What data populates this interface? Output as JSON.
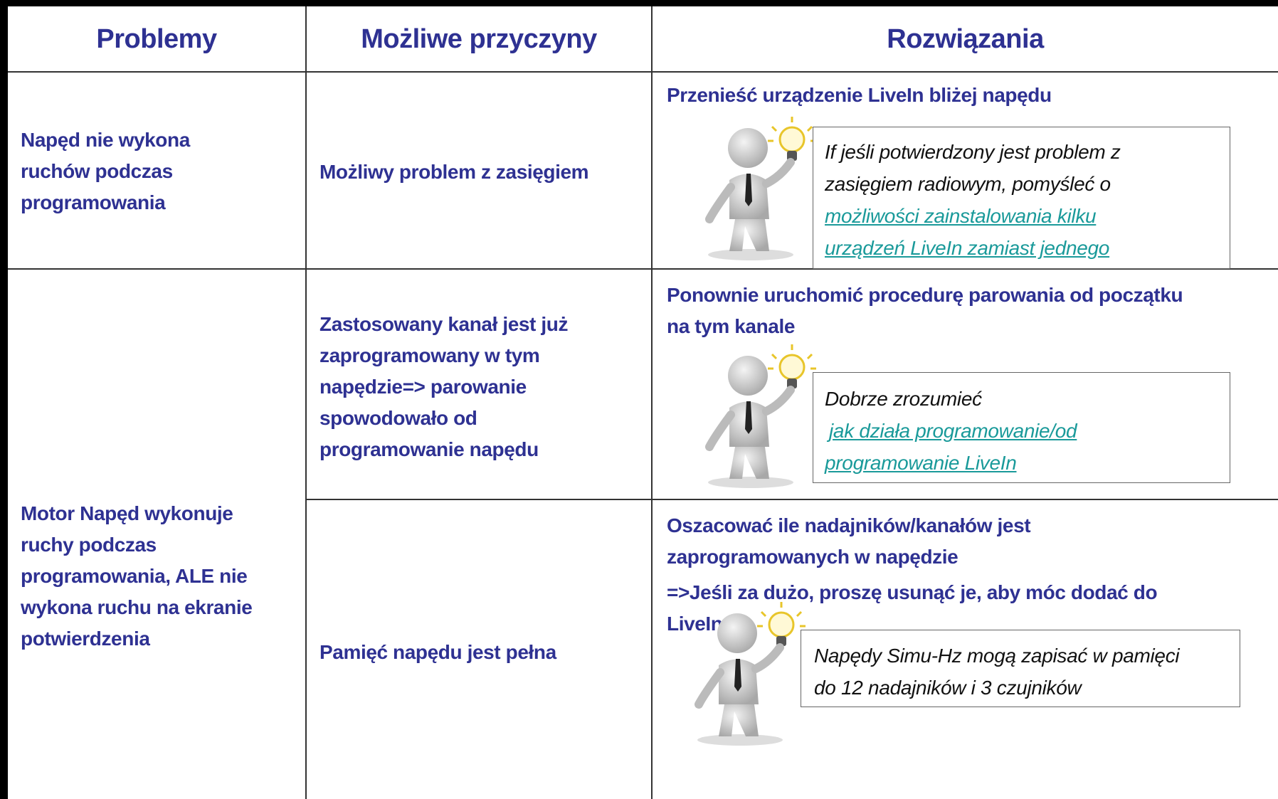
{
  "header": {
    "columns": [
      "Problemy",
      "Możliwe przyczyny",
      "Rozwiązania"
    ]
  },
  "problems": [
    {
      "lines": [
        "Napęd nie wykona",
        "ruchów podczas",
        "programowania"
      ]
    },
    {
      "lines": [
        "Motor Napęd wykonuje",
        "ruchy podczas",
        "programowania, ALE nie",
        "wykona ruchu na ekranie",
        "potwierdzenia"
      ]
    }
  ],
  "causes": [
    {
      "lines": [
        "Możliwy problem z zasięgiem"
      ],
      "solution": [
        [
          "Przenieść urządzenie LiveIn bliżej napędu"
        ]
      ],
      "tip": {
        "text": [
          "If jeśli potwierdzony jest problem z",
          "zasięgiem radiowym, pomyśleć o"
        ],
        "link": [
          "możliwości zainstalowania kilku",
          "urządzeń LiveIn zamiast jednego"
        ]
      }
    },
    {
      "lines": [
        "Zastosowany kanał jest już",
        "zaprogramowany w tym",
        "napędzie=> parowanie",
        "spowodowało od",
        "programowanie napędu"
      ],
      "solution": [
        [
          "Ponownie uruchomić procedurę parowania od początku",
          "na tym kanale"
        ]
      ],
      "tip": {
        "text": [
          "Dobrze zrozumieć"
        ],
        "link": [
          "jak działa programowanie/od",
          "programowanie LiveIn"
        ]
      }
    },
    {
      "lines": [
        "Pamięć napędu jest pełna"
      ],
      "solution": [
        [
          "Oszacować ile nadajników/kanałów jest",
          "zaprogramowanych w napędzie"
        ],
        [
          "=>Jeśli za dużo, proszę usunąć je, aby móc dodać do",
          "LiveIn"
        ]
      ],
      "tip": {
        "text": [
          "Napędy Simu-Hz mogą zapisać w pamięci",
          "do 12 nadajników i 3 czujników"
        ]
      }
    }
  ]
}
